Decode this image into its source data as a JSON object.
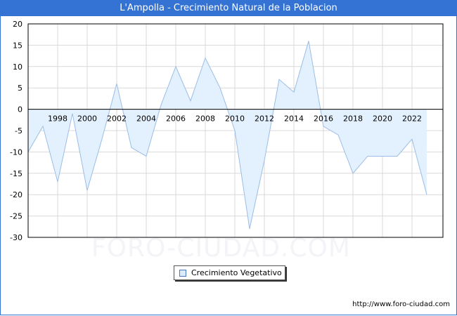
{
  "header": {
    "title": "L'Ampolla - Crecimiento Natural de la Poblacion"
  },
  "legend": {
    "label": "Crecimiento Vegetativo"
  },
  "footer": {
    "source": "http://www.foro-ciudad.com",
    "watermark": "FORO-CIUDAD.COM"
  },
  "colors": {
    "title_bar": "#3473d4",
    "area_fill": "#e3f0fd",
    "line": "#9bbde8",
    "grid": "#d9d9d9"
  },
  "chart_data": {
    "type": "area",
    "title": "L'Ampolla - Crecimiento Natural de la Poblacion",
    "xlabel": "",
    "ylabel": "",
    "ylim": [
      -30,
      20
    ],
    "yticks": [
      20,
      15,
      10,
      5,
      0,
      -5,
      -10,
      -15,
      -20,
      -25,
      -30
    ],
    "xtick_labels": [
      "1998",
      "2000",
      "2002",
      "2004",
      "2006",
      "2008",
      "2010",
      "2012",
      "2014",
      "2016",
      "2018",
      "2020",
      "2022"
    ],
    "grid": true,
    "legend_position": "bottom-center",
    "x": [
      1996,
      1997,
      1998,
      1999,
      2000,
      2001,
      2002,
      2003,
      2004,
      2005,
      2006,
      2007,
      2008,
      2009,
      2010,
      2011,
      2012,
      2013,
      2014,
      2015,
      2016,
      2017,
      2018,
      2019,
      2020,
      2021,
      2022,
      2023
    ],
    "series": [
      {
        "name": "Crecimiento Vegetativo",
        "values": [
          -10,
          -4,
          -17,
          -1,
          -19,
          -7,
          6,
          -9,
          -11,
          1,
          10,
          2,
          12,
          5,
          -5,
          -28,
          -12,
          7,
          4,
          16,
          -4,
          -6,
          -15,
          -11,
          -11,
          -11,
          -7,
          -20
        ]
      }
    ]
  }
}
